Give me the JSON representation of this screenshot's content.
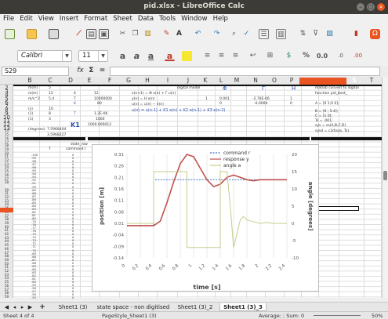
{
  "window": {
    "title": "pid.xlsx - LibreOffice Calc"
  },
  "menu": [
    "File",
    "Edit",
    "View",
    "Insert",
    "Format",
    "Sheet",
    "Data",
    "Tools",
    "Window",
    "Help"
  ],
  "format": {
    "font_name": "Calibri",
    "font_size": "11",
    "number_format": "0.0",
    "percent_label": "%"
  },
  "formula_bar": {
    "cell_ref": "S29",
    "function_wizard": "fx",
    "sum_symbol": "Σ",
    "equals": "="
  },
  "columns": [
    "B",
    "C",
    "D",
    "E",
    "F",
    "G",
    "H",
    "I",
    "J",
    "K",
    "L",
    "M",
    "N",
    "O",
    "P",
    "Q",
    "R",
    "S",
    "T",
    "U"
  ],
  "rows": [
    "2",
    "3",
    "4",
    "5",
    "6",
    "7",
    "8",
    "9",
    "10",
    "11",
    "12",
    "13",
    "14",
    "15",
    "16",
    "17",
    "18",
    "19",
    "20",
    "21",
    "22",
    "23",
    "24",
    "25",
    "26",
    "27",
    "28",
    "29",
    "30",
    "31",
    "32",
    "33",
    "34",
    "35",
    "36",
    "37",
    "38",
    "39",
    "40",
    "41",
    "42",
    "43",
    "44",
    "45",
    "46",
    "47",
    "48",
    "49",
    "50",
    "51",
    "52",
    "53",
    "54",
    "55",
    "56",
    "57",
    "58",
    "59"
  ],
  "cells": {
    "b2": "m(m)",
    "c2": "5",
    "b3": "m(m)",
    "c3": "12",
    "b4": "m/s^2",
    "c4": "5.4",
    "b5": "(s)",
    "c5": "10",
    "b6": "(1)",
    "c6": "8",
    "b7": "(1)",
    "c7": "3",
    "b9": "(degrees)",
    "c9": "7.5968404",
    "c10": "3.5968227",
    "e2": "4",
    "f2": "12",
    "e3": "T",
    "f3": "10000000",
    "e4": "K",
    "f4": "80",
    "e6": "T",
    "f6": "1.2E-06",
    "f7": "1000",
    "e8": "K1",
    "f8": "1000.000012",
    "h2": "digital model",
    "h3": "x(n+1) = Φ x(n) + Γ u(n)",
    "h4": "y(n) = H x(n)",
    "h5": "u(n) = u(n) − e(n)",
    "h7": "u(n) = u(n-1) + K1 e(n) + K2 e(n-1) + K3 e(n-2)",
    "m2": "Φ",
    "o2": "Γ",
    "r2": "H",
    "l4": "1",
    "m4": "0.001",
    "o4": "-2.78E-06",
    "r4": "1",
    "m5": "0",
    "o5": "-0.0004",
    "r5": "0",
    "s2": "matlab convert to digital",
    "s3": "function pid_best_",
    "s6": "A = [0 1;0 0];",
    "s9": "B = [0 ; 5.4];",
    "s10": "C = [1 0];",
    "s11": "Ts = .001;",
    "s13": "sys = ss(A,B,C,D)",
    "s15": "sysd = c2d(sys, Ts)",
    "d12": "state_row",
    "b13": "T",
    "d13": "command r"
  },
  "col_b_values": [
    "-100",
    "-99",
    "-98",
    "-97",
    "-96",
    "-95",
    "-94",
    "-93",
    "-92",
    "-91",
    "-90",
    "-89",
    "-88",
    "-87",
    "-86",
    "-85",
    "-84",
    "-83",
    "-82",
    "-81",
    "-80",
    "-79",
    "-78",
    "-77",
    "-76",
    "-75",
    "-74",
    "-73",
    "-72",
    "-71",
    "-70",
    "-69",
    "-68",
    "-67",
    "-66",
    "-65",
    "-64",
    "-63",
    "-62",
    "-61",
    "-60",
    "-59",
    "-58",
    "-57",
    "-56",
    "-55"
  ],
  "chart_data": {
    "type": "line",
    "title": "",
    "xlabel": "time [s]",
    "ylabel": "position [m]",
    "y2label": "angle [degrees]",
    "xlim": [
      0,
      2.4
    ],
    "ylim": [
      -0.14,
      0.31
    ],
    "y2lim": [
      -10,
      20
    ],
    "x_ticks": [
      "0",
      "0.2",
      "0.4",
      "0.6",
      "0.8",
      "1",
      "1.2",
      "1.4",
      "1.6",
      "1.8",
      "2",
      "2.2",
      "2.4"
    ],
    "y_ticks": [
      "0.31",
      "0.26",
      "0.21",
      "0.16",
      "0.11",
      "0.06",
      "0.01",
      "-0.04",
      "-0.09",
      "-0.14"
    ],
    "y2_ticks": [
      "20",
      "15",
      "10",
      "5",
      "0",
      "-5",
      "-10"
    ],
    "legend_position": "top-right",
    "series": [
      {
        "name": "command r",
        "axis": "left",
        "color": "#4472c4",
        "style": "dashed",
        "x": [
          0,
          0.4,
          0.4,
          2.4
        ],
        "y": [
          0,
          0,
          0.2,
          0.2
        ]
      },
      {
        "name": "response y",
        "axis": "left",
        "color": "#c0504d",
        "style": "solid",
        "x": [
          0,
          0.4,
          0.5,
          0.6,
          0.7,
          0.8,
          0.9,
          1.0,
          1.1,
          1.2,
          1.3,
          1.4,
          1.5,
          1.6,
          1.7,
          1.8,
          1.9,
          2.0,
          2.1,
          2.2,
          2.3,
          2.4
        ],
        "y": [
          0,
          0,
          0.02,
          0.1,
          0.19,
          0.27,
          0.31,
          0.3,
          0.25,
          0.2,
          0.17,
          0.18,
          0.21,
          0.22,
          0.21,
          0.2,
          0.195,
          0.2,
          0.2,
          0.2,
          0.2,
          0.2
        ]
      },
      {
        "name": "angle a",
        "axis": "right",
        "color": "#c5cc8d",
        "style": "solid",
        "x": [
          0,
          0.4,
          0.4,
          0.9,
          0.9,
          1.4,
          1.4,
          1.5,
          1.55,
          1.6,
          1.65,
          1.7,
          1.75,
          1.8,
          1.9,
          2.0,
          2.1,
          2.2,
          2.3,
          2.4
        ],
        "y": [
          0,
          0,
          15,
          15,
          -7,
          -7,
          15,
          15,
          5,
          -7,
          -3,
          1,
          2,
          1,
          0.5,
          0,
          0.3,
          0,
          0,
          0
        ]
      }
    ]
  },
  "sheet_tabs": [
    "Sheet1 (3)",
    "state space - non digitised",
    "Sheet1 (3)_2",
    "Sheet1 (3)_3"
  ],
  "active_tab": "Sheet1 (3)_3",
  "status": {
    "sheet_of": "Sheet 4 of 4",
    "page_style": "PageStyle_Sheet1 (3)",
    "summary": "Average: ; Sum: 0",
    "zoom": "50%"
  },
  "colors": {
    "titlebar": "#3c3b37",
    "close_button": "#e95420",
    "selected_row": "#e95420"
  }
}
